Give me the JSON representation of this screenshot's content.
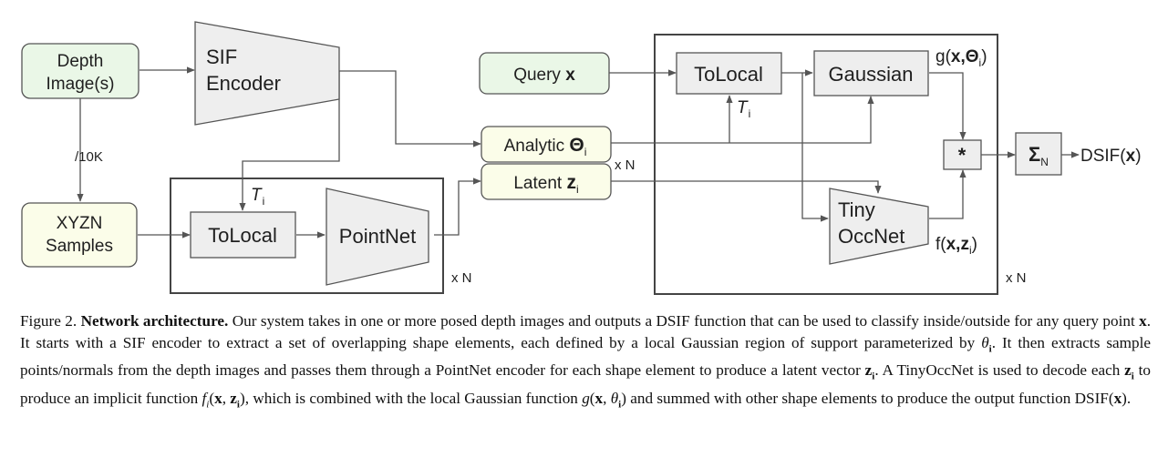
{
  "nodes": {
    "depth_images": {
      "line1": "Depth",
      "line2": "Image(s)"
    },
    "sif_encoder": {
      "line1": "SIF",
      "line2": "Encoder"
    },
    "xyzn_samples": {
      "line1": "XYZN",
      "line2": "Samples"
    },
    "tolocal_left": "ToLocal",
    "pointnet": "PointNet",
    "query": {
      "text": "Query",
      "var": "x"
    },
    "analytic": {
      "text": "Analytic",
      "var": "Θ",
      "sub": "i"
    },
    "latent": {
      "text": "Latent",
      "var": "z",
      "sub": "i"
    },
    "tolocal_right": "ToLocal",
    "gaussian": "Gaussian",
    "tiny_occnet": {
      "line1": "Tiny",
      "line2": "OccNet"
    },
    "multiply": "*",
    "sum": {
      "symbol": "Σ",
      "sub": "N"
    },
    "dsif": {
      "text": "DSIF(",
      "var": "x",
      "close": ")"
    }
  },
  "labels": {
    "subsample": "/10K",
    "t_i_left": {
      "main": "T",
      "sub": "i"
    },
    "t_i_right": {
      "main": "T",
      "sub": "i"
    },
    "g_func": {
      "pre": "g(",
      "bold": "x,Θ",
      "sub": "i",
      "post": ")"
    },
    "f_func": {
      "pre": "f(",
      "bold": "x,z",
      "sub": "i",
      "post": ")"
    },
    "xn_left": "x N",
    "xn_mid": "x N",
    "xn_right": "x N"
  },
  "colors": {
    "input_green": "#eaf7e7",
    "input_yellow": "#fbfde9",
    "module_gray": "#eeeeee",
    "stroke": "#555555"
  },
  "caption": {
    "figure_label": "Figure 2.",
    "title": "Network architecture.",
    "s1": "Our system takes in one or more posed depth images and outputs a DSIF function that can be used to classify inside/outside for any query point",
    "s2": ". It starts with a SIF encoder to extract a set of overlapping shape elements, each defined by a local Gaussian region of support parameterized by",
    "s3": ". It then extracts sample points/normals from the depth images and passes them through a PointNet encoder for each shape element to produce a latent vector",
    "s4": ". A TinyOccNet is used to decode each",
    "s5": "to produce an implicit function",
    "s6": ", which is combined with the local Gaussian function",
    "s7": "and summed with other shape elements to produce the output function",
    "end": "."
  }
}
